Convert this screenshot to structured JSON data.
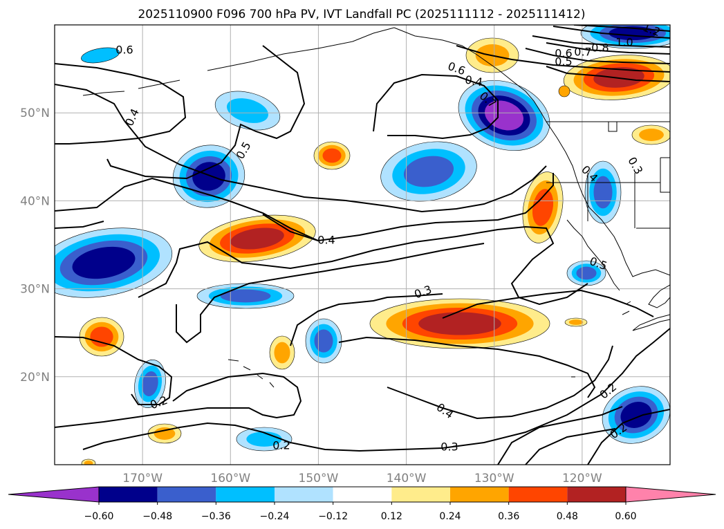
{
  "title": "2025110900 F096 700 hPa PV, IVT Landfall PC (2025111112 - 2025111412)",
  "map": {
    "lon_range": [
      -180,
      -110
    ],
    "lat_range": [
      10,
      60
    ],
    "lat_labels": [
      "50°N",
      "40°N",
      "30°N",
      "20°N"
    ],
    "lon_labels": [
      "170°W",
      "160°W",
      "150°W",
      "140°W",
      "130°W",
      "120°W"
    ],
    "contour_labels": [
      "0.6",
      "0.4",
      "0.5",
      "0.6",
      "0.4",
      "0.7",
      "0.6",
      "0.7",
      "0.8",
      "1.0",
      "1.2",
      "0.5",
      "0.4",
      "0.3",
      "0.4",
      "0.3",
      "0.5",
      "0.2",
      "0.2",
      "0.4",
      "0.3",
      "0.2",
      "0.2"
    ]
  },
  "colorbar": {
    "ticks": [
      "−0.60",
      "−0.48",
      "−0.36",
      "−0.24",
      "−0.12",
      "0.12",
      "0.24",
      "0.36",
      "0.48",
      "0.60"
    ],
    "colors": [
      "#9932cc",
      "#00008b",
      "#3a5fcd",
      "#00bfff",
      "#b0e2ff",
      "#ffffff",
      "#ffec8b",
      "#ffa500",
      "#ff4500",
      "#b22222",
      "#ff82ab"
    ]
  },
  "colors": {
    "purple": "#9932cc",
    "navy": "#00008b",
    "blue": "#3a5fcd",
    "sky": "#00bfff",
    "lightblue": "#b0e2ff",
    "yellow": "#ffec8b",
    "orange": "#ffa500",
    "redorange": "#ff4500",
    "firebrick": "#b22222",
    "pink": "#ff82ab"
  }
}
